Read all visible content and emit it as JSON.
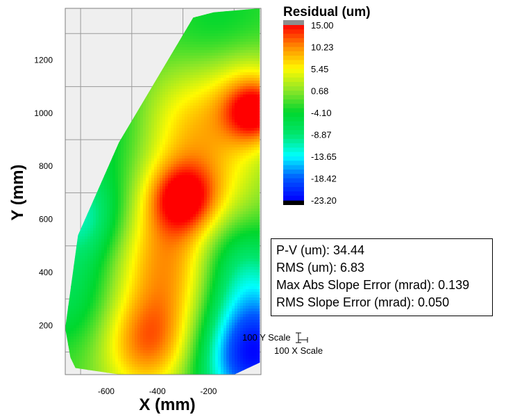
{
  "chart_data": {
    "type": "heatmap",
    "title": "",
    "xlabel": "X (mm)",
    "ylabel": "Y (mm)",
    "xlim": [
      -760,
      5
    ],
    "ylim": [
      15,
      1395
    ],
    "x_ticks": [
      -600,
      -400,
      -200
    ],
    "y_ticks": [
      200,
      400,
      600,
      800,
      1000,
      1200
    ],
    "x_tick_labels": [
      "-600",
      "-400",
      "-200"
    ],
    "y_tick_labels": [
      "200",
      "400",
      "600",
      "800",
      "1000",
      "1200"
    ],
    "grid": true,
    "colorbar": {
      "title": "Residual (um)",
      "min": -23.2,
      "max": 15.0,
      "tick_labels": [
        "15.00",
        "10.23",
        "5.45",
        "0.68",
        "-4.10",
        "-8.87",
        "-13.65",
        "-18.42",
        "-23.20"
      ],
      "tick_values": [
        15.0,
        10.23,
        5.45,
        0.68,
        -4.1,
        -8.87,
        -13.65,
        -18.42,
        -23.2
      ],
      "overflow_color": "#8c8c8c",
      "underflow_color": "#000000"
    },
    "boundary": [
      [
        -740,
        80
      ],
      [
        -720,
        40
      ],
      [
        -545,
        15
      ],
      [
        -100,
        15
      ],
      [
        0,
        60
      ],
      [
        0,
        1395
      ],
      [
        -180,
        1380
      ],
      [
        -260,
        1360
      ],
      [
        -550,
        890
      ],
      [
        -710,
        540
      ],
      [
        -760,
        190
      ]
    ],
    "peaks": [
      {
        "x": -440,
        "y": 130,
        "value": 12.5,
        "r": 140
      },
      {
        "x": -300,
        "y": 680,
        "value": 10.5,
        "r": 90
      },
      {
        "x": -270,
        "y": 720,
        "value": 4.5,
        "r": 200
      },
      {
        "x": -400,
        "y": 480,
        "value": 6.0,
        "r": 170
      },
      {
        "x": -290,
        "y": 350,
        "value": 3.5,
        "r": 150
      },
      {
        "x": -220,
        "y": 900,
        "value": 3.0,
        "r": 170
      },
      {
        "x": -300,
        "y": 1020,
        "value": 2.5,
        "r": 150
      },
      {
        "x": -20,
        "y": 1000,
        "value": 12.0,
        "r": 80
      },
      {
        "x": -30,
        "y": 1100,
        "value": 5.0,
        "r": 120
      },
      {
        "x": -30,
        "y": 80,
        "value": -24.0,
        "r": 150
      },
      {
        "x": -60,
        "y": 350,
        "value": -12.0,
        "r": 140
      },
      {
        "x": -680,
        "y": 600,
        "value": -12.0,
        "r": 120
      },
      {
        "x": -720,
        "y": 320,
        "value": -8.0,
        "r": 140
      },
      {
        "x": -600,
        "y": 900,
        "value": -7.0,
        "r": 200
      },
      {
        "x": -130,
        "y": 500,
        "value": -6.0,
        "r": 110
      },
      {
        "x": -150,
        "y": 1300,
        "value": -5.0,
        "r": 150
      },
      {
        "x": -600,
        "y": 130,
        "value": -3.0,
        "r": 100
      }
    ],
    "base_value": -2.0,
    "stats": {
      "pv": "P-V (um): 34.44",
      "rms": "RMS (um): 6.83",
      "max_slope": "Max Abs Slope Error (mrad): 0.139",
      "rms_slope": "RMS Slope Error (mrad): 0.050"
    },
    "scale_labels": {
      "y": "100 Y Scale",
      "x": "100 X Scale"
    }
  }
}
